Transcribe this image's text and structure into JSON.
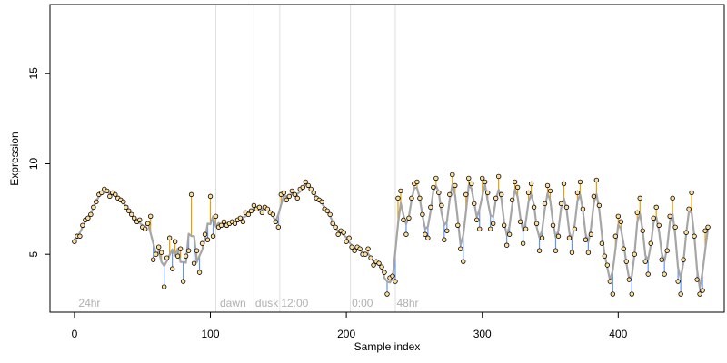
{
  "chart_data": {
    "type": "scatter",
    "title": "",
    "xlabel": "Sample index",
    "ylabel": "Expression",
    "xlim": [
      -18,
      478
    ],
    "ylim": [
      1.8,
      18.8
    ],
    "xticks": [
      0,
      100,
      200,
      300,
      400
    ],
    "yticks": [
      5,
      10,
      15
    ],
    "grid": false,
    "legend": "none",
    "colors": {
      "points_fill": "#FFDFA0",
      "points_edge": "#000000",
      "fit_line": "#A6A6A6",
      "residual_above": "#E69F00",
      "residual_below": "#6495ED",
      "region_line": "#E0E0E0",
      "region_label": "#B0B0B0"
    },
    "region_boundaries": [
      104,
      132,
      151,
      203,
      236
    ],
    "region_labels": [
      {
        "label": "24hr",
        "x": 3
      },
      {
        "label": "dawn",
        "x": 107
      },
      {
        "label": "dusk",
        "x": 133
      },
      {
        "label": "12:00",
        "x": 152
      },
      {
        "label": "0:00",
        "x": 204
      },
      {
        "label": "48hr",
        "x": 237
      }
    ],
    "series": [
      {
        "name": "",
        "points": [
          [
            0,
            5.7
          ],
          [
            2,
            6.0
          ],
          [
            4,
            6.0
          ],
          [
            6,
            6.6
          ],
          [
            8,
            6.9
          ],
          [
            10,
            7.0
          ],
          [
            12,
            7.2
          ],
          [
            14,
            7.6
          ],
          [
            16,
            7.9
          ],
          [
            18,
            8.3
          ],
          [
            20,
            8.4
          ],
          [
            22,
            8.6
          ],
          [
            24,
            8.5
          ],
          [
            26,
            8.2
          ],
          [
            28,
            8.4
          ],
          [
            30,
            8.3
          ],
          [
            32,
            8.1
          ],
          [
            34,
            8.0
          ],
          [
            36,
            7.9
          ],
          [
            38,
            7.6
          ],
          [
            40,
            7.4
          ],
          [
            42,
            7.2
          ],
          [
            44,
            7.0
          ],
          [
            46,
            6.8
          ],
          [
            48,
            6.9
          ],
          [
            50,
            6.5
          ],
          [
            52,
            6.4
          ],
          [
            54,
            6.7
          ],
          [
            56,
            7.1
          ],
          [
            58,
            4.7
          ],
          [
            60,
            5.0
          ],
          [
            62,
            5.4
          ],
          [
            64,
            5.1
          ],
          [
            66,
            3.2
          ],
          [
            68,
            4.8
          ],
          [
            70,
            5.9
          ],
          [
            72,
            4.2
          ],
          [
            74,
            5.7
          ],
          [
            76,
            4.9
          ],
          [
            78,
            5.3
          ],
          [
            80,
            3.5
          ],
          [
            82,
            4.9
          ],
          [
            84,
            5.2
          ],
          [
            86,
            8.3
          ],
          [
            88,
            4.5
          ],
          [
            90,
            5.2
          ],
          [
            92,
            4.0
          ],
          [
            94,
            5.6
          ],
          [
            96,
            6.1
          ],
          [
            98,
            5.8
          ],
          [
            100,
            8.2
          ],
          [
            102,
            6.0
          ],
          [
            104,
            7.1
          ],
          [
            106,
            6.5
          ],
          [
            108,
            6.6
          ],
          [
            110,
            6.8
          ],
          [
            112,
            6.6
          ],
          [
            114,
            6.7
          ],
          [
            116,
            6.8
          ],
          [
            118,
            6.7
          ],
          [
            120,
            6.9
          ],
          [
            122,
            7.0
          ],
          [
            124,
            6.8
          ],
          [
            126,
            7.3
          ],
          [
            128,
            7.2
          ],
          [
            130,
            7.4
          ],
          [
            132,
            7.7
          ],
          [
            134,
            7.5
          ],
          [
            136,
            7.6
          ],
          [
            138,
            7.3
          ],
          [
            140,
            7.6
          ],
          [
            142,
            7.5
          ],
          [
            144,
            7.3
          ],
          [
            146,
            7.2
          ],
          [
            148,
            6.8
          ],
          [
            150,
            6.5
          ],
          [
            152,
            8.3
          ],
          [
            154,
            8.4
          ],
          [
            156,
            8.0
          ],
          [
            158,
            8.2
          ],
          [
            160,
            8.5
          ],
          [
            162,
            8.3
          ],
          [
            164,
            8.1
          ],
          [
            166,
            8.6
          ],
          [
            168,
            8.7
          ],
          [
            170,
            9.0
          ],
          [
            172,
            8.8
          ],
          [
            174,
            8.6
          ],
          [
            176,
            8.4
          ],
          [
            178,
            8.1
          ],
          [
            180,
            8.0
          ],
          [
            182,
            7.9
          ],
          [
            184,
            7.5
          ],
          [
            186,
            7.4
          ],
          [
            188,
            7.2
          ],
          [
            190,
            6.7
          ],
          [
            192,
            6.5
          ],
          [
            194,
            6.1
          ],
          [
            196,
            6.3
          ],
          [
            198,
            6.2
          ],
          [
            200,
            5.7
          ],
          [
            202,
            5.9
          ],
          [
            204,
            5.4
          ],
          [
            206,
            5.2
          ],
          [
            208,
            5.4
          ],
          [
            210,
            5.3
          ],
          [
            212,
            5.0
          ],
          [
            214,
            5.0
          ],
          [
            216,
            5.3
          ],
          [
            218,
            4.8
          ],
          [
            220,
            4.4
          ],
          [
            222,
            4.6
          ],
          [
            224,
            4.5
          ],
          [
            226,
            4.3
          ],
          [
            228,
            4.0
          ],
          [
            230,
            2.8
          ],
          [
            232,
            3.7
          ],
          [
            234,
            3.8
          ],
          [
            236,
            3.5
          ],
          [
            238,
            8.1
          ],
          [
            240,
            8.5
          ],
          [
            242,
            6.9
          ],
          [
            244,
            6.1
          ],
          [
            246,
            7.0
          ],
          [
            248,
            8.1
          ],
          [
            250,
            8.9
          ],
          [
            252,
            9.0
          ],
          [
            254,
            8.1
          ],
          [
            256,
            7.2
          ],
          [
            258,
            6.1
          ],
          [
            260,
            5.9
          ],
          [
            262,
            7.6
          ],
          [
            264,
            8.7
          ],
          [
            266,
            9.2
          ],
          [
            268,
            8.4
          ],
          [
            270,
            7.7
          ],
          [
            272,
            5.8
          ],
          [
            274,
            6.3
          ],
          [
            276,
            8.3
          ],
          [
            278,
            9.4
          ],
          [
            280,
            8.8
          ],
          [
            282,
            6.6
          ],
          [
            284,
            5.3
          ],
          [
            286,
            4.6
          ],
          [
            288,
            8.3
          ],
          [
            290,
            9.2
          ],
          [
            292,
            8.9
          ],
          [
            294,
            7.8
          ],
          [
            296,
            6.9
          ],
          [
            298,
            6.4
          ],
          [
            300,
            9.2
          ],
          [
            302,
            9.0
          ],
          [
            304,
            8.4
          ],
          [
            306,
            6.4
          ],
          [
            308,
            6.7
          ],
          [
            310,
            8.1
          ],
          [
            312,
            9.3
          ],
          [
            314,
            8.3
          ],
          [
            316,
            6.6
          ],
          [
            318,
            5.5
          ],
          [
            320,
            6.1
          ],
          [
            322,
            8.0
          ],
          [
            324,
            9.0
          ],
          [
            326,
            8.7
          ],
          [
            328,
            6.8
          ],
          [
            330,
            5.6
          ],
          [
            332,
            6.4
          ],
          [
            334,
            8.4
          ],
          [
            336,
            8.9
          ],
          [
            338,
            7.6
          ],
          [
            340,
            6.7
          ],
          [
            342,
            5.2
          ],
          [
            344,
            5.9
          ],
          [
            346,
            7.8
          ],
          [
            348,
            8.8
          ],
          [
            350,
            8.5
          ],
          [
            352,
            6.6
          ],
          [
            354,
            5.2
          ],
          [
            356,
            6.0
          ],
          [
            358,
            7.8
          ],
          [
            360,
            8.9
          ],
          [
            362,
            7.6
          ],
          [
            364,
            5.9
          ],
          [
            366,
            5.1
          ],
          [
            368,
            6.4
          ],
          [
            370,
            8.4
          ],
          [
            372,
            9.0
          ],
          [
            374,
            7.5
          ],
          [
            376,
            5.8
          ],
          [
            378,
            5.1
          ],
          [
            380,
            6.1
          ],
          [
            382,
            8.2
          ],
          [
            384,
            9.1
          ],
          [
            386,
            7.7
          ],
          [
            388,
            5.6
          ],
          [
            390,
            4.9
          ],
          [
            392,
            4.4
          ],
          [
            394,
            3.5
          ],
          [
            396,
            2.8
          ],
          [
            398,
            6.0
          ],
          [
            400,
            7.1
          ],
          [
            402,
            6.8
          ],
          [
            404,
            5.3
          ],
          [
            406,
            4.6
          ],
          [
            408,
            3.6
          ],
          [
            410,
            2.8
          ],
          [
            412,
            5.0
          ],
          [
            414,
            7.3
          ],
          [
            416,
            8.1
          ],
          [
            418,
            6.3
          ],
          [
            420,
            4.6
          ],
          [
            422,
            3.9
          ],
          [
            424,
            5.6
          ],
          [
            426,
            7.0
          ],
          [
            428,
            7.6
          ],
          [
            430,
            6.6
          ],
          [
            432,
            4.7
          ],
          [
            434,
            3.9
          ],
          [
            436,
            5.2
          ],
          [
            438,
            7.1
          ],
          [
            440,
            8.1
          ],
          [
            442,
            6.5
          ],
          [
            444,
            3.5
          ],
          [
            446,
            2.8
          ],
          [
            448,
            4.7
          ],
          [
            450,
            6.2
          ],
          [
            452,
            7.5
          ],
          [
            454,
            8.4
          ],
          [
            456,
            6.0
          ],
          [
            458,
            3.6
          ],
          [
            460,
            2.8
          ],
          [
            462,
            3.0
          ],
          [
            464,
            6.3
          ],
          [
            466,
            6.5
          ]
        ]
      }
    ]
  }
}
